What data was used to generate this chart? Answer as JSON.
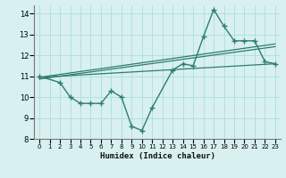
{
  "main_x": [
    0,
    2,
    3,
    4,
    5,
    6,
    7,
    8,
    9,
    10,
    11,
    13,
    14,
    15,
    16,
    17,
    18,
    19,
    20,
    21,
    22,
    23
  ],
  "main_y": [
    11.0,
    10.7,
    10.0,
    9.7,
    9.7,
    9.7,
    10.3,
    10.0,
    8.6,
    8.4,
    9.5,
    11.3,
    11.6,
    11.5,
    12.9,
    14.2,
    13.4,
    12.7,
    12.7,
    12.7,
    11.7,
    11.6
  ],
  "trend1_x": [
    0,
    23
  ],
  "trend1_y": [
    10.95,
    12.55
  ],
  "trend2_x": [
    0,
    23
  ],
  "trend2_y": [
    10.87,
    12.42
  ],
  "trend3_x": [
    0,
    23
  ],
  "trend3_y": [
    10.95,
    11.6
  ],
  "line_color": "#2e7d6e",
  "bg_color": "#d8f0f0",
  "grid_color": "#aadddd",
  "xlabel": "Humidex (Indice chaleur)",
  "xlim": [
    -0.5,
    23.5
  ],
  "ylim": [
    8,
    14.4
  ],
  "xticks": [
    0,
    1,
    2,
    3,
    4,
    5,
    6,
    7,
    8,
    9,
    10,
    11,
    12,
    13,
    14,
    15,
    16,
    17,
    18,
    19,
    20,
    21,
    22,
    23
  ],
  "yticks": [
    8,
    9,
    10,
    11,
    12,
    13,
    14
  ]
}
